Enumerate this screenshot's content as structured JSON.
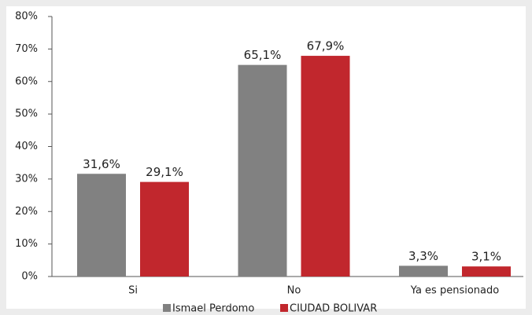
{
  "chart_data": {
    "type": "bar",
    "categories": [
      "Si",
      "No",
      "Ya es pensionado"
    ],
    "series": [
      {
        "name": "Ismael Perdomo",
        "color": "#818181",
        "values": [
          31.6,
          65.1,
          3.3
        ],
        "value_labels": [
          "31,6%",
          "65,1%",
          "3,3%"
        ]
      },
      {
        "name": "CIUDAD BOLIVAR",
        "color": "#c1272d",
        "values": [
          29.1,
          67.9,
          3.1
        ],
        "value_labels": [
          "29,1%",
          "67,9%",
          "3,1%"
        ]
      }
    ],
    "ylim": [
      0,
      80
    ],
    "yticks": [
      {
        "value": 0,
        "label": "0%"
      },
      {
        "value": 10,
        "label": "10%"
      },
      {
        "value": 20,
        "label": "20%"
      },
      {
        "value": 30,
        "label": "30%"
      },
      {
        "value": 40,
        "label": "40%"
      },
      {
        "value": 50,
        "label": "50%"
      },
      {
        "value": 60,
        "label": "60%"
      },
      {
        "value": 70,
        "label": "70%"
      },
      {
        "value": 80,
        "label": "80%"
      }
    ],
    "grid": false,
    "legend": "bottom"
  }
}
